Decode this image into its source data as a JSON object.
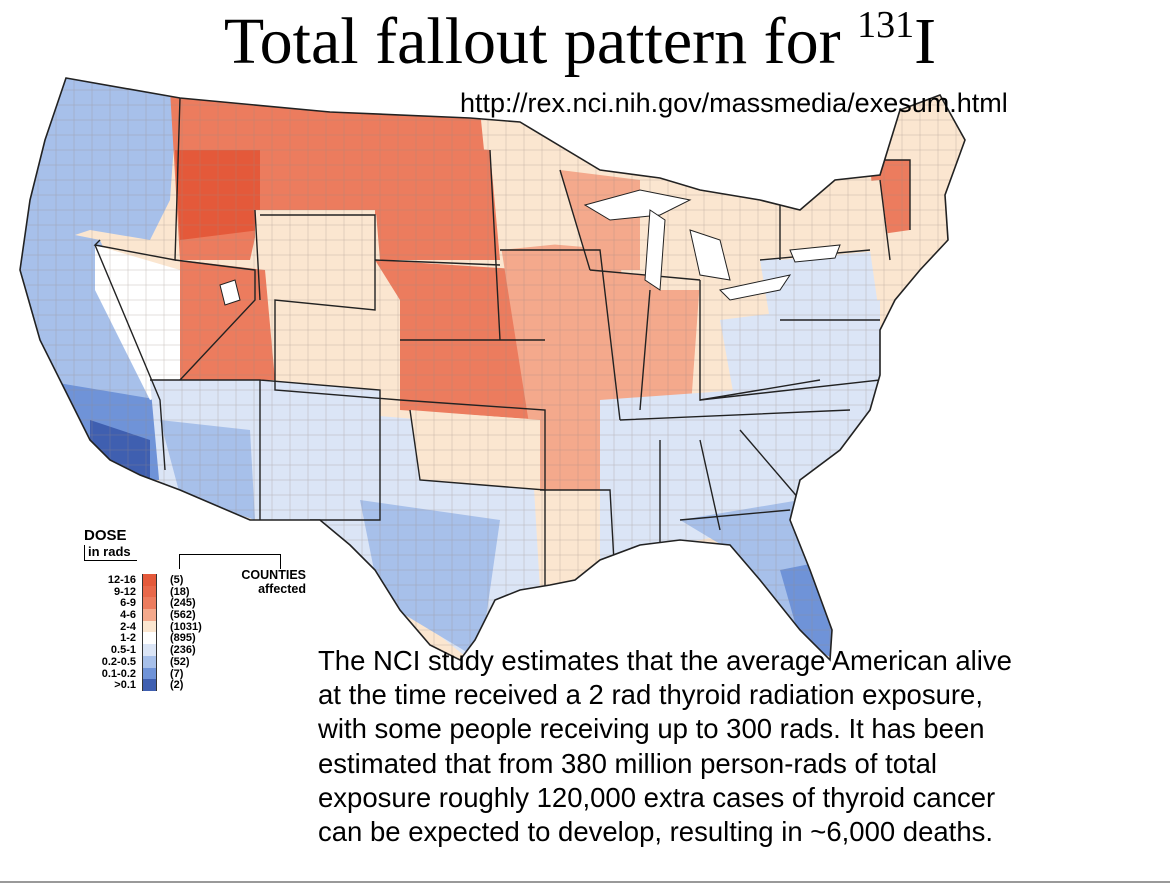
{
  "title": {
    "main": "Total fallout pattern for ",
    "superscript": "131",
    "element": "I"
  },
  "source_url": "http://rex.nci.nih.gov/massmedia/exesum.html",
  "legend": {
    "heading": "DOSE",
    "subheading": "in rads",
    "counties_label_1": "COUNTIES",
    "counties_label_2": "affected",
    "rows": [
      {
        "range": "12-16",
        "count": "(5)",
        "color": "#e4593a"
      },
      {
        "range": "9-12",
        "count": "(18)",
        "color": "#e8684a"
      },
      {
        "range": "6-9",
        "count": "(245)",
        "color": "#ec7c5e"
      },
      {
        "range": "4-6",
        "count": "(562)",
        "color": "#f4a98c"
      },
      {
        "range": "2-4",
        "count": "(1031)",
        "color": "#fbe6d0"
      },
      {
        "range": "1-2",
        "count": "(895)",
        "color": "#ffffff"
      },
      {
        "range": "0.5-1",
        "count": "(236)",
        "color": "#dbe5f6"
      },
      {
        "range": "0.2-0.5",
        "count": "(52)",
        "color": "#a7c0ea"
      },
      {
        "range": "0.1-0.2",
        "count": "(7)",
        "color": "#6f93d8"
      },
      {
        "range": ">0.1",
        "count": "(2)",
        "color": "#3f5fb0"
      }
    ]
  },
  "note_lines": [
    "The NCI study estimates that the average American alive",
    "at the time received a 2 rad thyroid radiation exposure,",
    "with some people receiving up to 300 rads. It has been",
    "estimated that from 380 million person-rads of total",
    "exposure roughly 120,000 extra cases of thyroid cancer",
    "can be expected to develop, resulting in ~6,000 deaths."
  ],
  "map_colors": {
    "red_dark": "#e4593a",
    "red": "#ec7c5e",
    "orange": "#f4a98c",
    "cream": "#fbe6d0",
    "white": "#ffffff",
    "blue_light": "#dbe5f6",
    "blue": "#a7c0ea",
    "blue_mid": "#6f93d8",
    "blue_dark": "#3f5fb0"
  }
}
